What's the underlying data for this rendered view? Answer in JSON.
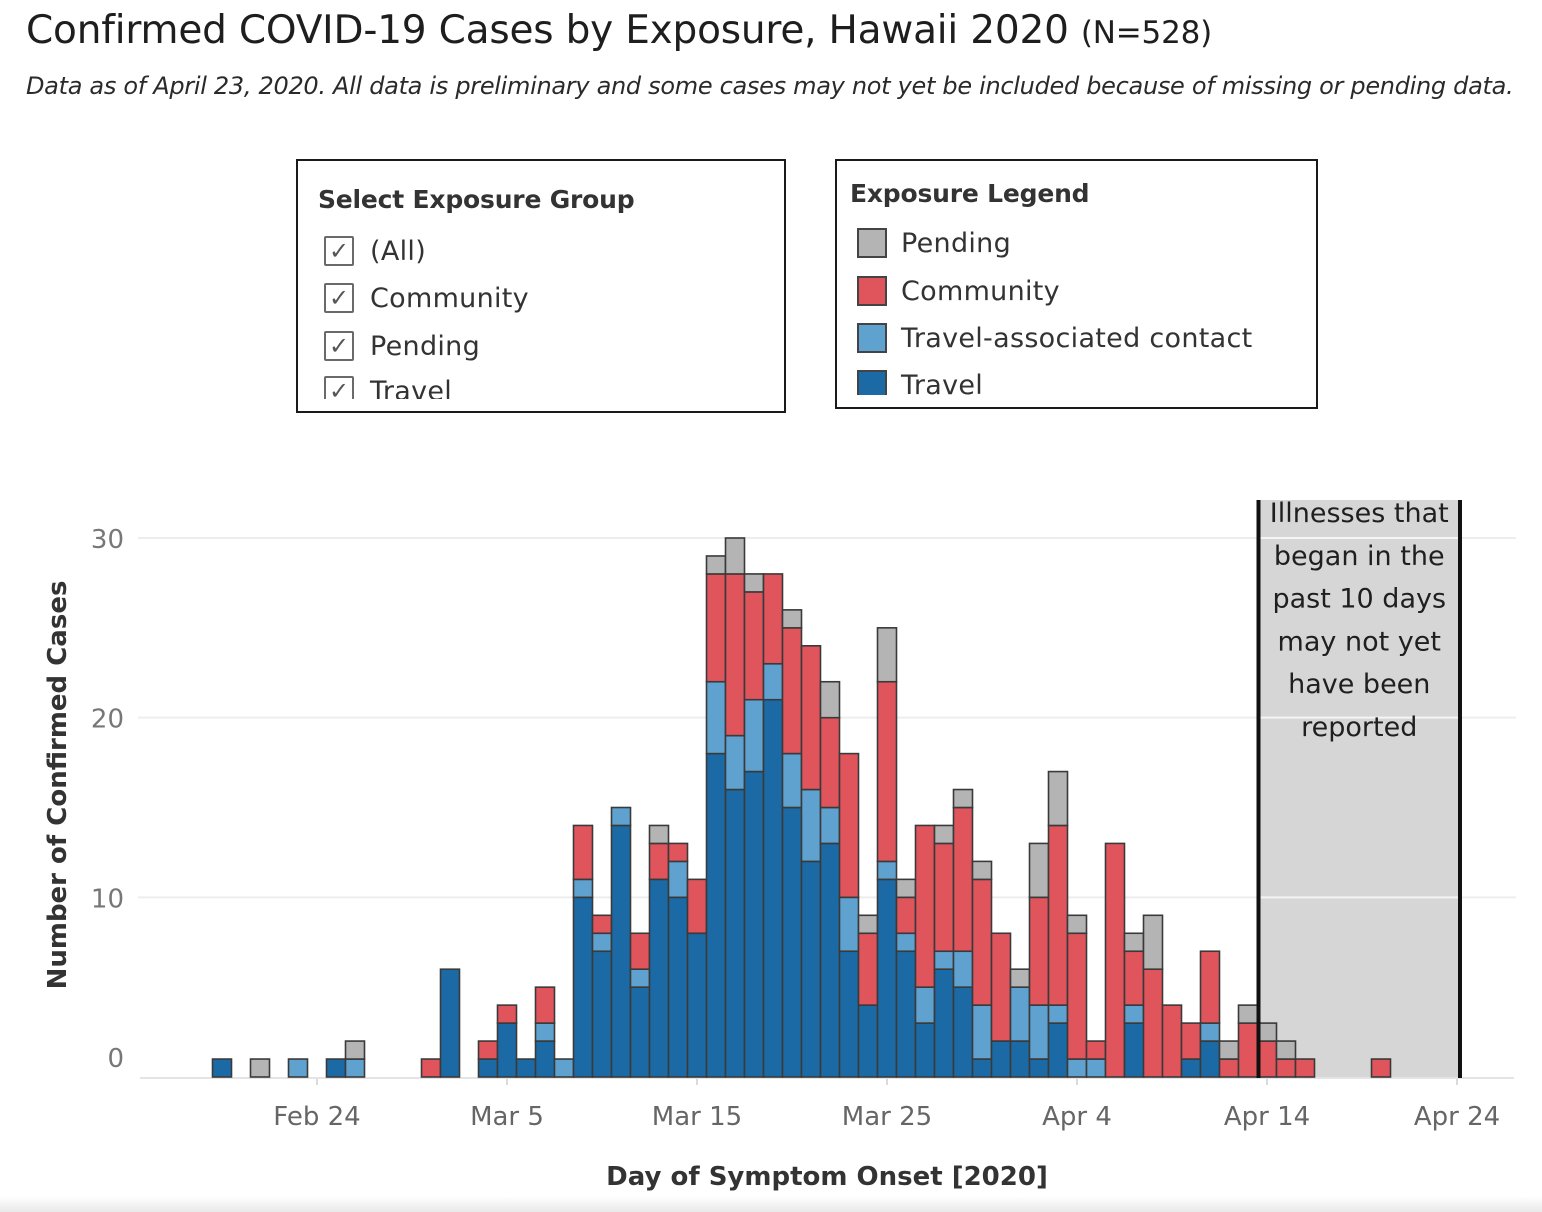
{
  "header": {
    "title": "Confirmed COVID-19 Cases by Exposure, Hawaii 2020",
    "count": "(N=528)",
    "subtitle": "Data as of April 23, 2020. All data is preliminary and some cases may not yet be included because of missing or pending data."
  },
  "filter": {
    "title": "Select Exposure Group",
    "items": [
      {
        "label": "(All)",
        "checked": true
      },
      {
        "label": "Community",
        "checked": true
      },
      {
        "label": "Pending",
        "checked": true
      },
      {
        "label": "Travel",
        "checked": true
      }
    ]
  },
  "legend": {
    "title": "Exposure Legend",
    "items": [
      {
        "label": "Pending",
        "color": "#b4b4b4"
      },
      {
        "label": "Community",
        "color": "#e0545c"
      },
      {
        "label": "Travel-associated contact",
        "color": "#5fa2d0"
      },
      {
        "label": "Travel",
        "color": "#1b6aa5"
      }
    ]
  },
  "chart_data": {
    "type": "bar",
    "stacked": true,
    "xlabel": "Day of Symptom Onset [2020]",
    "ylabel": "Number of Confirmed Cases",
    "ylim": [
      0,
      30
    ],
    "yticks": [
      0,
      10,
      20,
      30
    ],
    "x_tick_labels": [
      "Feb 24",
      "Mar 5",
      "Mar 15",
      "Mar 25",
      "Apr 4",
      "Apr 14",
      "Apr 24"
    ],
    "x_tick_dates": [
      "2020-02-24",
      "2020-03-05",
      "2020-03-15",
      "2020-03-25",
      "2020-04-04",
      "2020-04-14",
      "2020-04-24"
    ],
    "stack_order": [
      "Travel",
      "Travel-associated contact",
      "Community",
      "Pending"
    ],
    "annotation": {
      "text": "Illnesses that began in the past 10 days may not yet have been reported",
      "from": "2020-04-14",
      "to": "2020-04-24"
    },
    "bars": [
      {
        "date": "2020-02-19",
        "travel": 1,
        "contact": 0,
        "community": 0,
        "pending": 0
      },
      {
        "date": "2020-02-21",
        "travel": 0,
        "contact": 0,
        "community": 0,
        "pending": 1
      },
      {
        "date": "2020-02-23",
        "travel": 0,
        "contact": 1,
        "community": 0,
        "pending": 0
      },
      {
        "date": "2020-02-25",
        "travel": 1,
        "contact": 0,
        "community": 0,
        "pending": 0
      },
      {
        "date": "2020-02-26",
        "travel": 0,
        "contact": 1,
        "community": 0,
        "pending": 1
      },
      {
        "date": "2020-03-01",
        "travel": 0,
        "contact": 0,
        "community": 1,
        "pending": 0
      },
      {
        "date": "2020-03-02",
        "travel": 6,
        "contact": 0,
        "community": 0,
        "pending": 0
      },
      {
        "date": "2020-03-04",
        "travel": 1,
        "contact": 0,
        "community": 1,
        "pending": 0
      },
      {
        "date": "2020-03-05",
        "travel": 3,
        "contact": 0,
        "community": 1,
        "pending": 0
      },
      {
        "date": "2020-03-06",
        "travel": 1,
        "contact": 0,
        "community": 0,
        "pending": 0
      },
      {
        "date": "2020-03-07",
        "travel": 2,
        "contact": 1,
        "community": 2,
        "pending": 0
      },
      {
        "date": "2020-03-08",
        "travel": 0,
        "contact": 1,
        "community": 0,
        "pending": 0
      },
      {
        "date": "2020-03-09",
        "travel": 10,
        "contact": 1,
        "community": 3,
        "pending": 0
      },
      {
        "date": "2020-03-10",
        "travel": 7,
        "contact": 1,
        "community": 1,
        "pending": 0
      },
      {
        "date": "2020-03-11",
        "travel": 14,
        "contact": 1,
        "community": 0,
        "pending": 0
      },
      {
        "date": "2020-03-12",
        "travel": 5,
        "contact": 1,
        "community": 2,
        "pending": 0
      },
      {
        "date": "2020-03-13",
        "travel": 11,
        "contact": 0,
        "community": 2,
        "pending": 1
      },
      {
        "date": "2020-03-14",
        "travel": 10,
        "contact": 2,
        "community": 1,
        "pending": 0
      },
      {
        "date": "2020-03-15",
        "travel": 8,
        "contact": 0,
        "community": 3,
        "pending": 0
      },
      {
        "date": "2020-03-16",
        "travel": 18,
        "contact": 4,
        "community": 6,
        "pending": 1
      },
      {
        "date": "2020-03-17",
        "travel": 16,
        "contact": 3,
        "community": 9,
        "pending": 2
      },
      {
        "date": "2020-03-18",
        "travel": 17,
        "contact": 4,
        "community": 6,
        "pending": 1
      },
      {
        "date": "2020-03-19",
        "travel": 21,
        "contact": 2,
        "community": 5,
        "pending": 0
      },
      {
        "date": "2020-03-20",
        "travel": 15,
        "contact": 3,
        "community": 7,
        "pending": 1
      },
      {
        "date": "2020-03-21",
        "travel": 12,
        "contact": 4,
        "community": 8,
        "pending": 0
      },
      {
        "date": "2020-03-22",
        "travel": 13,
        "contact": 2,
        "community": 5,
        "pending": 2
      },
      {
        "date": "2020-03-23",
        "travel": 7,
        "contact": 3,
        "community": 8,
        "pending": 0
      },
      {
        "date": "2020-03-24",
        "travel": 4,
        "contact": 0,
        "community": 4,
        "pending": 1
      },
      {
        "date": "2020-03-25",
        "travel": 11,
        "contact": 1,
        "community": 10,
        "pending": 3
      },
      {
        "date": "2020-03-26",
        "travel": 7,
        "contact": 1,
        "community": 2,
        "pending": 1
      },
      {
        "date": "2020-03-27",
        "travel": 3,
        "contact": 2,
        "community": 9,
        "pending": 0
      },
      {
        "date": "2020-03-28",
        "travel": 6,
        "contact": 1,
        "community": 6,
        "pending": 1
      },
      {
        "date": "2020-03-29",
        "travel": 5,
        "contact": 2,
        "community": 8,
        "pending": 1
      },
      {
        "date": "2020-03-30",
        "travel": 1,
        "contact": 3,
        "community": 7,
        "pending": 1
      },
      {
        "date": "2020-03-31",
        "travel": 2,
        "contact": 0,
        "community": 6,
        "pending": 0
      },
      {
        "date": "2020-04-01",
        "travel": 2,
        "contact": 3,
        "community": 0,
        "pending": 1
      },
      {
        "date": "2020-04-02",
        "travel": 1,
        "contact": 3,
        "community": 6,
        "pending": 3
      },
      {
        "date": "2020-04-03",
        "travel": 3,
        "contact": 1,
        "community": 10,
        "pending": 3
      },
      {
        "date": "2020-04-04",
        "travel": 0,
        "contact": 1,
        "community": 7,
        "pending": 1
      },
      {
        "date": "2020-04-05",
        "travel": 0,
        "contact": 1,
        "community": 1,
        "pending": 0
      },
      {
        "date": "2020-04-06",
        "travel": 0,
        "contact": 0,
        "community": 13,
        "pending": 0
      },
      {
        "date": "2020-04-07",
        "travel": 3,
        "contact": 1,
        "community": 3,
        "pending": 1
      },
      {
        "date": "2020-04-08",
        "travel": 0,
        "contact": 0,
        "community": 6,
        "pending": 3
      },
      {
        "date": "2020-04-09",
        "travel": 0,
        "contact": 0,
        "community": 4,
        "pending": 0
      },
      {
        "date": "2020-04-10",
        "travel": 1,
        "contact": 0,
        "community": 2,
        "pending": 0
      },
      {
        "date": "2020-04-11",
        "travel": 2,
        "contact": 1,
        "community": 4,
        "pending": 0
      },
      {
        "date": "2020-04-12",
        "travel": 0,
        "contact": 0,
        "community": 1,
        "pending": 1
      },
      {
        "date": "2020-04-13",
        "travel": 0,
        "contact": 0,
        "community": 3,
        "pending": 1
      },
      {
        "date": "2020-04-14",
        "travel": 0,
        "contact": 0,
        "community": 2,
        "pending": 1
      },
      {
        "date": "2020-04-15",
        "travel": 0,
        "contact": 0,
        "community": 1,
        "pending": 1
      },
      {
        "date": "2020-04-16",
        "travel": 0,
        "contact": 0,
        "community": 1,
        "pending": 0
      },
      {
        "date": "2020-04-20",
        "travel": 0,
        "contact": 0,
        "community": 1,
        "pending": 0
      }
    ]
  }
}
